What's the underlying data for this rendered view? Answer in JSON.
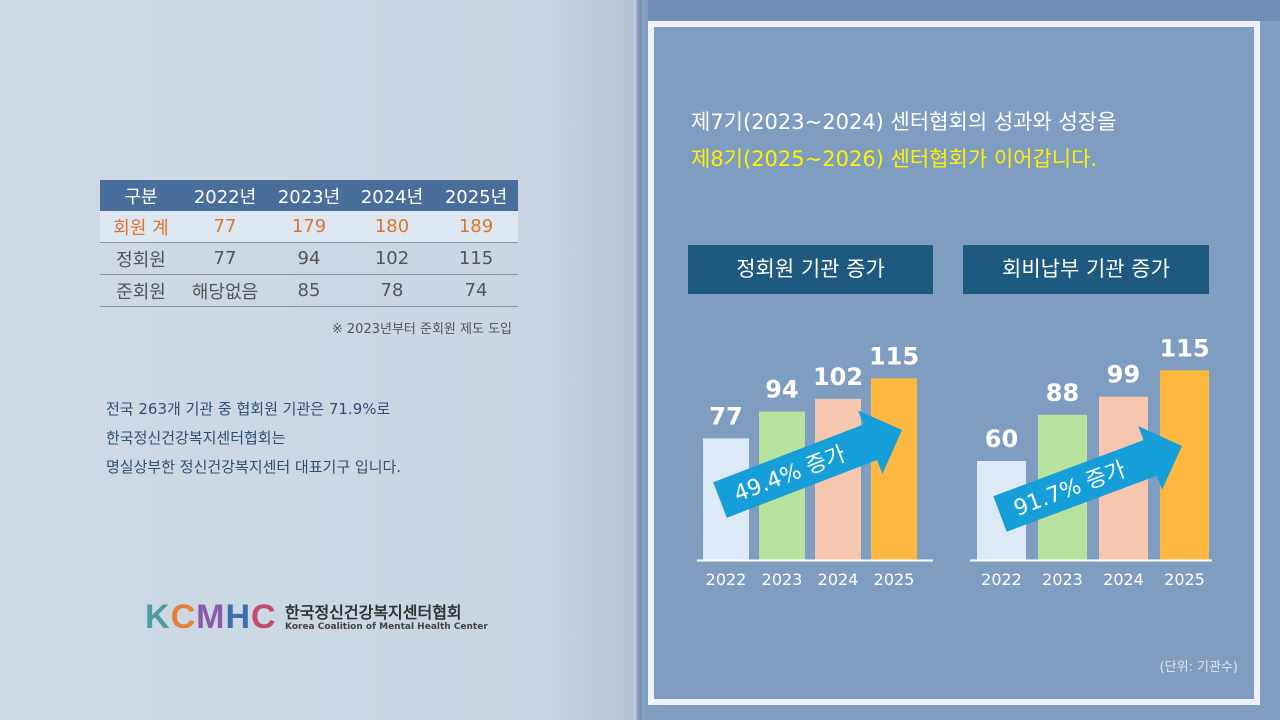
{
  "table": {
    "headers": [
      "구분",
      "2022년",
      "2023년",
      "2024년",
      "2025년"
    ],
    "rows": [
      [
        "회원 계",
        "77",
        "179",
        "180",
        "189"
      ],
      [
        "정회원",
        "77",
        "94",
        "102",
        "115"
      ],
      [
        "준회원",
        "해당없음",
        "85",
        "78",
        "74"
      ]
    ],
    "note": "※ 2023년부터 준회원 제도 도입"
  },
  "description": [
    "전국 263개 기관 중 협회원 기관은 71.9%로",
    "한국정신건강복지센터협회는",
    "명실상부한 정신건강복지센터 대표기구 입니다."
  ],
  "logo": {
    "mark": "KCMHC",
    "name": "한국정신건강복지센터협회",
    "subtitle": "Korea Coalition of Mental Health Center"
  },
  "headline": {
    "line1": "제7기(2023~2024) 센터협회의 성과와 성장을",
    "line2": "제8기(2025~2026) 센터협회가 이어갑니다."
  },
  "unit_note": "(단위: 기관수)",
  "colors": {
    "bar_2022": "#dce9f6",
    "bar_2023": "#b7e39e",
    "bar_2024": "#f7c6ae",
    "bar_2025": "#ffb83f",
    "arrow": "#169ed8",
    "title_box": "#1e5a80"
  },
  "chart_data": [
    {
      "type": "bar",
      "title": "정회원 기관 증가",
      "categories": [
        "2022",
        "2023",
        "2024",
        "2025"
      ],
      "values": [
        77,
        94,
        102,
        115
      ],
      "annotation": "49.4% 증가"
    },
    {
      "type": "bar",
      "title": "회비납부 기관 증가",
      "categories": [
        "2022",
        "2023",
        "2024",
        "2025"
      ],
      "values": [
        60,
        88,
        99,
        115
      ],
      "annotation": "91.7% 증가"
    }
  ]
}
